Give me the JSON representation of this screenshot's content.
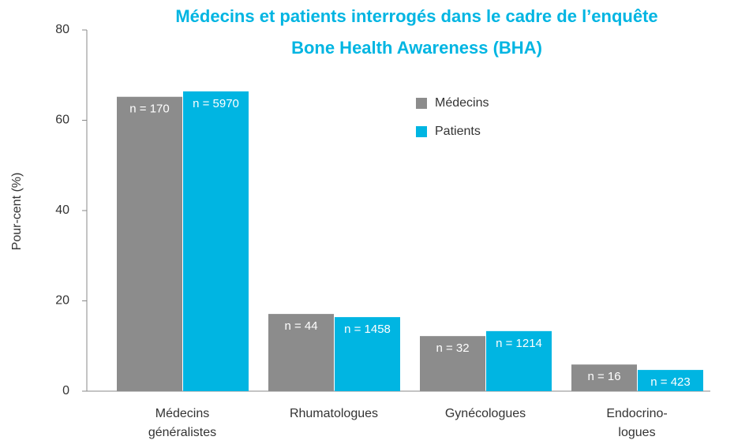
{
  "chart_data": {
    "type": "bar",
    "title": [
      "Médecins et patients interrogés dans le cadre de l’enquête",
      "Bone Health Awareness (BHA)"
    ],
    "y_label": "Pour-cent (%)",
    "categories": [
      [
        "Médecins",
        "généralistes"
      ],
      [
        "Rhumatologues"
      ],
      [
        "Gynécologues"
      ],
      [
        "Endocrino-",
        "logues"
      ]
    ],
    "series": [
      {
        "name": "Médecins",
        "color": "#8c8c8c",
        "values": [
          65.2,
          17.1,
          12.2,
          5.9
        ],
        "labels": [
          "n = 170",
          "n = 44",
          "n = 32",
          "n = 16"
        ]
      },
      {
        "name": "Patients",
        "color": "#00b5e2",
        "values": [
          66.4,
          16.4,
          13.3,
          4.7
        ],
        "labels": [
          "n = 5970",
          "n = 1458",
          "n = 1214",
          "n = 423"
        ]
      }
    ],
    "ylim": [
      0,
      80
    ],
    "yticks": [
      0,
      20,
      40,
      60,
      80
    ],
    "legend": "upper right",
    "grid": false
  }
}
